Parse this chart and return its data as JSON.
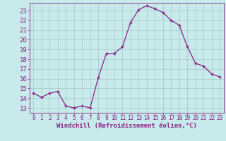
{
  "x": [
    0,
    1,
    2,
    3,
    4,
    5,
    6,
    7,
    8,
    9,
    10,
    11,
    12,
    13,
    14,
    15,
    16,
    17,
    18,
    19,
    20,
    21,
    22,
    23
  ],
  "y": [
    14.5,
    14.1,
    14.5,
    14.7,
    13.2,
    13.0,
    13.2,
    13.0,
    16.1,
    18.6,
    18.6,
    19.3,
    21.8,
    23.1,
    23.5,
    23.2,
    22.8,
    22.0,
    21.5,
    19.3,
    17.6,
    17.3,
    16.5,
    16.2
  ],
  "line_color": "#882288",
  "marker": "+",
  "marker_size": 4,
  "bg_color": "#c8eaea",
  "grid_color": "#a0c8c8",
  "xlabel": "Windchill (Refroidissement éolien,°C)",
  "ylabel": "",
  "xlim": [
    -0.5,
    23.5
  ],
  "ylim": [
    12.5,
    23.8
  ],
  "yticks": [
    13,
    14,
    15,
    16,
    17,
    18,
    19,
    20,
    21,
    22,
    23
  ],
  "xticks": [
    0,
    1,
    2,
    3,
    4,
    5,
    6,
    7,
    8,
    9,
    10,
    11,
    12,
    13,
    14,
    15,
    16,
    17,
    18,
    19,
    20,
    21,
    22,
    23
  ],
  "xlabel_fontsize": 6.5,
  "ytick_fontsize": 6.5,
  "xtick_fontsize": 5.5,
  "text_color": "#882288",
  "spine_color": "#882288"
}
